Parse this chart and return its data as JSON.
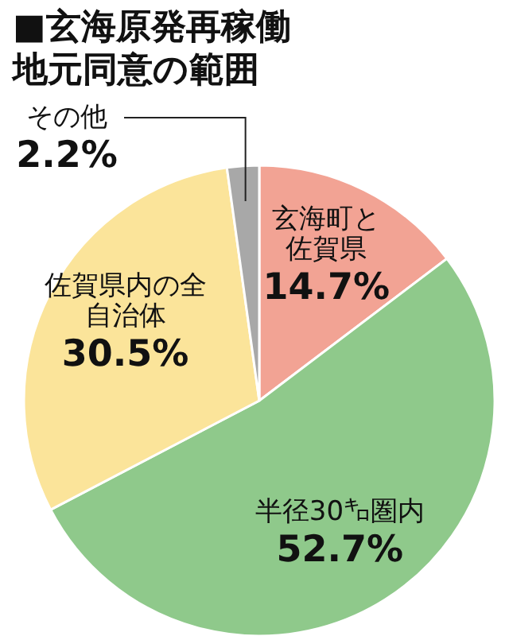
{
  "chart_data": {
    "type": "pie",
    "title": "■玄海原発再稼働地元同意の範囲",
    "categories": [
      "玄海町と佐賀県",
      "半径30㌔圏内",
      "佐賀県内の全自治体",
      "その他"
    ],
    "values": [
      14.7,
      52.7,
      30.5,
      2.2
    ],
    "colors": [
      "#f2a394",
      "#8fc98b",
      "#fbe49a",
      "#a8a8a8"
    ],
    "value_labels": [
      "14.7%",
      "52.7%",
      "30.5%",
      "2.2%"
    ]
  }
}
